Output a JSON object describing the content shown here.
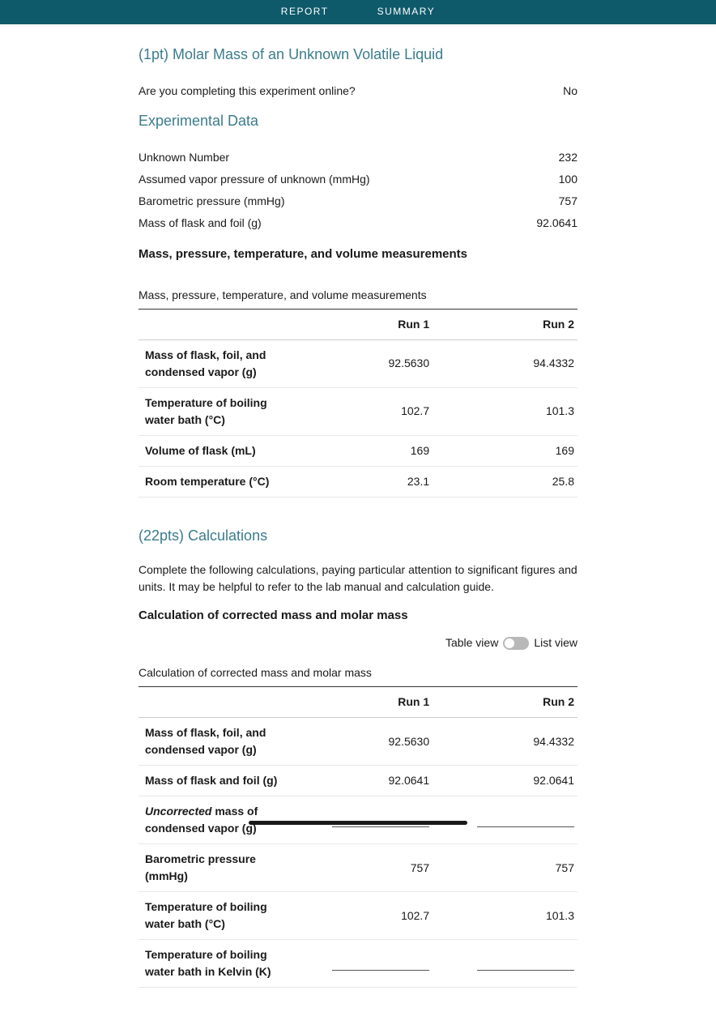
{
  "tabs": {
    "report": "REPORT",
    "summary": "SUMMARY"
  },
  "section1": {
    "title": "(1pt) Molar Mass of an Unknown Volatile Liquid",
    "question": "Are you completing this experiment online?",
    "answer": "No"
  },
  "experimental": {
    "title": "Experimental Data",
    "rows": [
      {
        "label": "Unknown Number",
        "value": "232"
      },
      {
        "label": "Assumed vapor pressure of unknown (mmHg)",
        "value": "100"
      },
      {
        "label": "Barometric pressure (mmHg)",
        "value": "757"
      },
      {
        "label": "Mass of flask and foil (g)",
        "value": "92.0641"
      }
    ]
  },
  "measurements": {
    "heading": "Mass, pressure, temperature, and volume measurements",
    "caption": "Mass, pressure, temperature, and volume measurements",
    "col1": "Run 1",
    "col2": "Run 2",
    "rows": [
      {
        "label": "Mass of flask, foil, and condensed vapor (g)",
        "r1": "92.5630",
        "r2": "94.4332"
      },
      {
        "label": "Temperature of boiling water bath (°C)",
        "r1": "102.7",
        "r2": "101.3"
      },
      {
        "label": "Volume of flask (mL)",
        "r1": "169",
        "r2": "169"
      },
      {
        "label": "Room temperature (°C)",
        "r1": "23.1",
        "r2": "25.8"
      }
    ]
  },
  "calculations": {
    "title": "(22pts) Calculations",
    "body": "Complete the following calculations, paying particular attention to significant figures and units. It may be helpful to refer to the lab manual and calculation guide.",
    "sub": "Calculation of corrected mass and molar mass",
    "toggle_left": "Table view",
    "toggle_right": "List view",
    "caption": "Calculation of corrected mass and molar mass",
    "col1": "Run 1",
    "col2": "Run 2",
    "rows": [
      {
        "label": "Mass of flask, foil, and condensed vapor (g)",
        "r1": "92.5630",
        "r2": "94.4332",
        "type": "val"
      },
      {
        "label": "Mass of flask and foil (g)",
        "r1": "92.0641",
        "r2": "92.0641",
        "type": "val"
      },
      {
        "label_italic": "Uncorrected",
        "label_rest": " mass of condensed vapor (g)",
        "type": "input"
      },
      {
        "label": "Barometric pressure (mmHg)",
        "r1": "757",
        "r2": "757",
        "type": "val"
      },
      {
        "label": "Temperature of boiling water bath (°C)",
        "r1": "102.7",
        "r2": "101.3",
        "type": "val"
      },
      {
        "label": "Temperature of boiling water bath in Kelvin (K)",
        "type": "input"
      }
    ]
  }
}
